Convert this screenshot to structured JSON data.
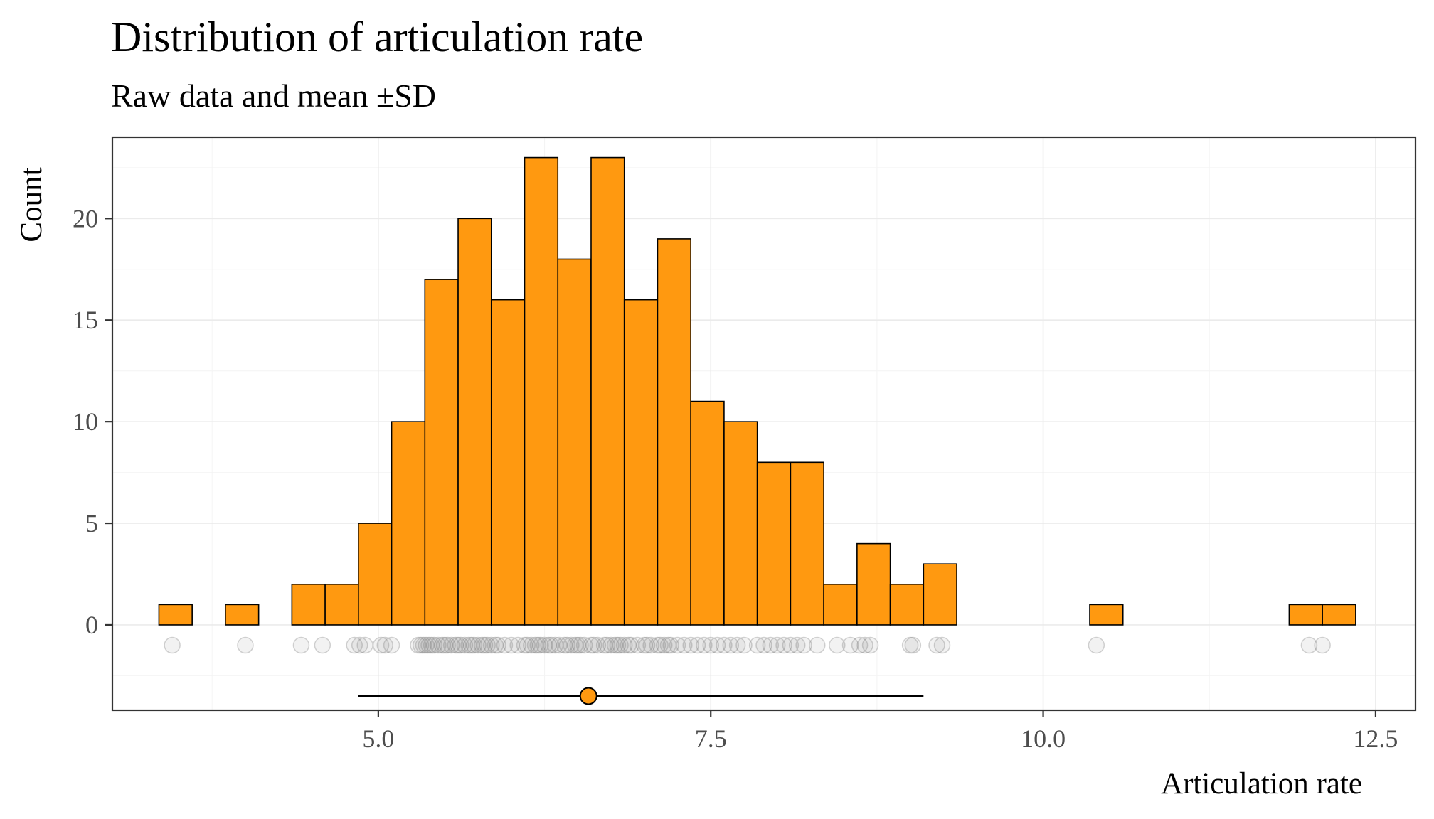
{
  "chart_data": {
    "type": "bar",
    "title": "Distribution of articulation rate",
    "subtitle": "Raw data and mean ±SD",
    "xlabel": "Articulation rate",
    "ylabel": "Count",
    "xlim": [
      3.0,
      12.8
    ],
    "ylim": [
      -4.2,
      24.0
    ],
    "x_ticks": [
      5.0,
      7.5,
      10.0,
      12.5
    ],
    "x_tick_labels": [
      "5.0",
      "7.5",
      "10.0",
      "12.5"
    ],
    "y_ticks": [
      0,
      5,
      10,
      15,
      20
    ],
    "y_tick_labels": [
      "0",
      "5",
      "10",
      "15",
      "20"
    ],
    "grid": true,
    "bin_width": 0.25,
    "bins": [
      {
        "start": 3.35,
        "count": 1
      },
      {
        "start": 3.6,
        "count": 0
      },
      {
        "start": 3.85,
        "count": 1
      },
      {
        "start": 4.1,
        "count": 0
      },
      {
        "start": 4.35,
        "count": 2
      },
      {
        "start": 4.6,
        "count": 2
      },
      {
        "start": 4.85,
        "count": 5
      },
      {
        "start": 5.1,
        "count": 10
      },
      {
        "start": 5.35,
        "count": 17
      },
      {
        "start": 5.6,
        "count": 20
      },
      {
        "start": 5.85,
        "count": 16
      },
      {
        "start": 6.1,
        "count": 23
      },
      {
        "start": 6.35,
        "count": 18
      },
      {
        "start": 6.6,
        "count": 23
      },
      {
        "start": 6.85,
        "count": 16
      },
      {
        "start": 7.1,
        "count": 19
      },
      {
        "start": 7.35,
        "count": 11
      },
      {
        "start": 7.6,
        "count": 10
      },
      {
        "start": 7.85,
        "count": 8
      },
      {
        "start": 8.1,
        "count": 8
      },
      {
        "start": 8.35,
        "count": 2
      },
      {
        "start": 8.6,
        "count": 4
      },
      {
        "start": 8.85,
        "count": 2
      },
      {
        "start": 9.1,
        "count": 3
      },
      {
        "start": 9.35,
        "count": 0
      },
      {
        "start": 9.6,
        "count": 0
      },
      {
        "start": 9.85,
        "count": 0
      },
      {
        "start": 10.1,
        "count": 0
      },
      {
        "start": 10.35,
        "count": 1
      },
      {
        "start": 10.6,
        "count": 0
      },
      {
        "start": 10.85,
        "count": 0
      },
      {
        "start": 11.1,
        "count": 0
      },
      {
        "start": 11.35,
        "count": 0
      },
      {
        "start": 11.6,
        "count": 0
      },
      {
        "start": 11.85,
        "count": 1
      },
      {
        "start": 12.1,
        "count": 1
      }
    ],
    "raw_points": {
      "y": -1,
      "x": [
        3.45,
        4.0,
        4.42,
        4.58,
        4.82,
        4.86,
        4.9,
        5.02,
        5.05,
        5.1,
        5.3,
        5.32,
        5.34,
        5.36,
        5.38,
        5.4,
        5.42,
        5.45,
        5.48,
        5.5,
        5.52,
        5.55,
        5.58,
        5.6,
        5.62,
        5.65,
        5.68,
        5.7,
        5.72,
        5.75,
        5.78,
        5.8,
        5.82,
        5.85,
        5.88,
        5.9,
        5.95,
        6.0,
        6.05,
        6.1,
        6.12,
        6.15,
        6.18,
        6.2,
        6.22,
        6.25,
        6.28,
        6.3,
        6.33,
        6.36,
        6.4,
        6.42,
        6.45,
        6.48,
        6.5,
        6.52,
        6.55,
        6.6,
        6.62,
        6.65,
        6.7,
        6.72,
        6.75,
        6.78,
        6.8,
        6.82,
        6.85,
        6.88,
        6.9,
        6.95,
        7.0,
        7.02,
        7.05,
        7.1,
        7.12,
        7.15,
        7.18,
        7.2,
        7.25,
        7.3,
        7.35,
        7.4,
        7.45,
        7.5,
        7.55,
        7.6,
        7.65,
        7.7,
        7.75,
        7.85,
        7.9,
        7.95,
        8.0,
        8.05,
        8.1,
        8.15,
        8.2,
        8.3,
        8.45,
        8.55,
        8.62,
        8.66,
        8.7,
        9.0,
        9.02,
        9.2,
        9.24,
        10.4,
        12.0,
        12.1
      ]
    },
    "summary": {
      "mean": 6.58,
      "sd_low": 4.85,
      "sd_high": 9.1,
      "y": -3.5,
      "point_color": "#ff9910"
    },
    "colors": {
      "bar_fill": "#ff9910",
      "bar_outline": "#000000",
      "raw_point": "#808080",
      "grid": "#ebebeb"
    }
  }
}
